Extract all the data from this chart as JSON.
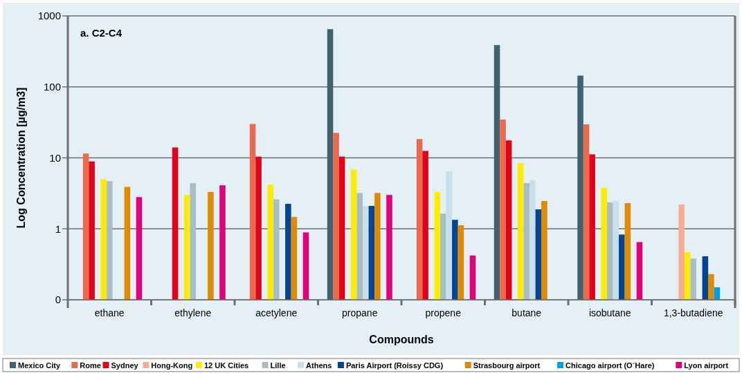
{
  "chart_data": {
    "type": "bar",
    "title": "a. C2-C4",
    "xlabel": "Compounds",
    "ylabel": "Log Concentration [µg/m3]",
    "categories": [
      "ethane",
      "ethylene",
      "acetylene",
      "propane",
      "propene",
      "butane",
      "isobutane",
      "1,3-butadiene"
    ],
    "log": true,
    "ylim": [
      0.1,
      1000
    ],
    "yticks": [
      {
        "value": 0.1,
        "label": "0"
      },
      1,
      10,
      100,
      1000
    ],
    "grid": "y",
    "legend": "bottom",
    "series": [
      {
        "name": "Mexico City",
        "color": "#3f6170",
        "values": [
          null,
          null,
          null,
          650,
          null,
          388,
          144,
          null
        ]
      },
      {
        "name": "Rome",
        "color": "#ec6a4c",
        "values": [
          11.5,
          null,
          30,
          22.5,
          18.4,
          34.6,
          29.6,
          null
        ]
      },
      {
        "name": "Sydney",
        "color": "#e2001a",
        "values": [
          8.9,
          14,
          10.4,
          10.4,
          12.5,
          17.6,
          11.2,
          null
        ]
      },
      {
        "name": "Hong-Kong",
        "color": "#f5ae93",
        "values": [
          null,
          null,
          null,
          null,
          null,
          null,
          null,
          2.2
        ]
      },
      {
        "name": "12 UK Cities",
        "color": "#ffec00",
        "values": [
          5,
          3,
          4.2,
          6.8,
          3.3,
          8.4,
          3.8,
          0.47
        ]
      },
      {
        "name": "Lille",
        "color": "#a8bec7",
        "values": [
          4.7,
          4.4,
          2.6,
          3.2,
          1.64,
          4.4,
          2.36,
          0.38
        ]
      },
      {
        "name": "Athens",
        "color": "#c9e0ec",
        "values": [
          null,
          null,
          null,
          2.1,
          6.5,
          4.85,
          2.5,
          null
        ]
      },
      {
        "name": "Paris Airport (Roissy CDG)",
        "color": "#004494",
        "values": [
          null,
          null,
          2.25,
          2.1,
          1.34,
          1.88,
          0.83,
          0.41
        ]
      },
      {
        "name": "Strasbourg airport",
        "color": "#de8b00",
        "values": [
          3.9,
          3.3,
          1.47,
          3.2,
          1.12,
          2.46,
          2.3,
          0.23
        ]
      },
      {
        "name": "Chicago airport (O´Hare)",
        "color": "#009fe3",
        "values": [
          null,
          null,
          null,
          null,
          null,
          null,
          null,
          0.15
        ]
      },
      {
        "name": "Lyon airport",
        "color": "#e2007a",
        "values": [
          2.8,
          4.1,
          0.89,
          3,
          0.42,
          null,
          0.65,
          null
        ]
      }
    ]
  }
}
